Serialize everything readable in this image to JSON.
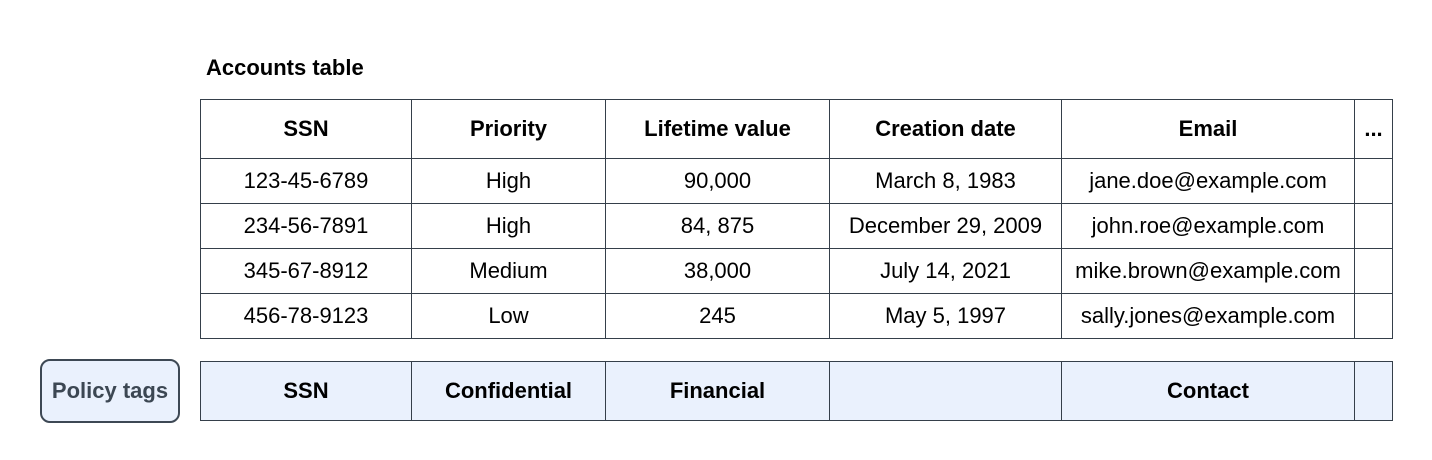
{
  "title": "Accounts table",
  "accounts_table": {
    "columns": [
      "SSN",
      "Priority",
      "Lifetime value",
      "Creation date",
      "Email",
      "..."
    ],
    "rows": [
      [
        "123-45-6789",
        "High",
        "90,000",
        "March 8, 1983",
        "jane.doe@example.com",
        ""
      ],
      [
        "234-56-7891",
        "High",
        "84, 875",
        "December 29, 2009",
        "john.roe@example.com",
        ""
      ],
      [
        "345-67-8912",
        "Medium",
        "38,000",
        "July 14, 2021",
        "mike.brown@example.com",
        ""
      ],
      [
        "456-78-9123",
        "Low",
        "245",
        "May 5, 1997",
        "sally.jones@example.com",
        ""
      ]
    ]
  },
  "policy_tags": {
    "label": "Policy tags",
    "tags": [
      "SSN",
      "Confidential",
      "Financial",
      "",
      "Contact",
      ""
    ]
  },
  "colors": {
    "background": "#ffffff",
    "table_border": "#353f4a",
    "policy_fill": "#eaf1fd",
    "chip_border": "#3d4854",
    "chip_text": "#3c4753",
    "text": "#000000"
  }
}
